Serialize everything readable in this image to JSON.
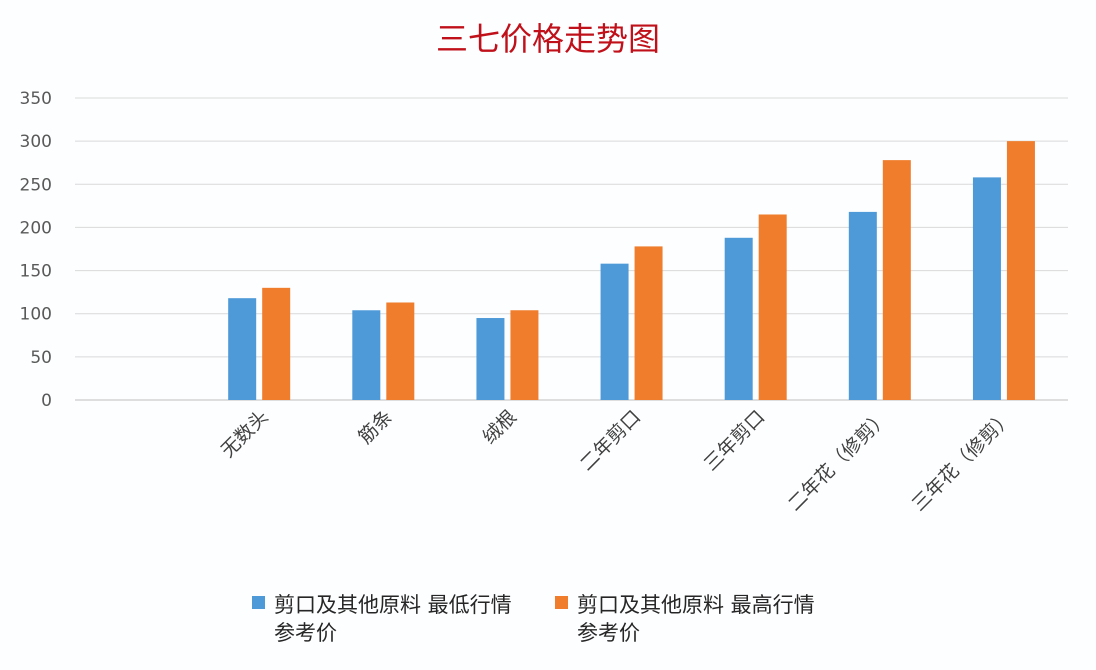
{
  "chart_data": {
    "type": "bar",
    "title": "三七价格走势图",
    "xlabel": "",
    "ylabel": "",
    "ylim": [
      0,
      350
    ],
    "yticks": [
      0,
      50,
      100,
      150,
      200,
      250,
      300,
      350
    ],
    "grid": true,
    "legend_position": "bottom",
    "categories": [
      "",
      "无数头",
      "筋条",
      "绒根",
      "二年剪口",
      "三年剪口",
      "二年花（修剪）",
      "三年花（修剪）"
    ],
    "series": [
      {
        "name": "剪口及其他原料 最低行情参考价",
        "name_lines": [
          "剪口及其他原料 最低行情",
          "参考价"
        ],
        "color": "#4e9ad9",
        "values": [
          null,
          118,
          104,
          95,
          158,
          188,
          218,
          258
        ]
      },
      {
        "name": "剪口及其他原料 最高行情参考价",
        "name_lines": [
          "剪口及其他原料 最高行情",
          "参考价"
        ],
        "color": "#ef7d2b",
        "values": [
          null,
          130,
          113,
          104,
          178,
          215,
          278,
          300
        ]
      }
    ]
  }
}
